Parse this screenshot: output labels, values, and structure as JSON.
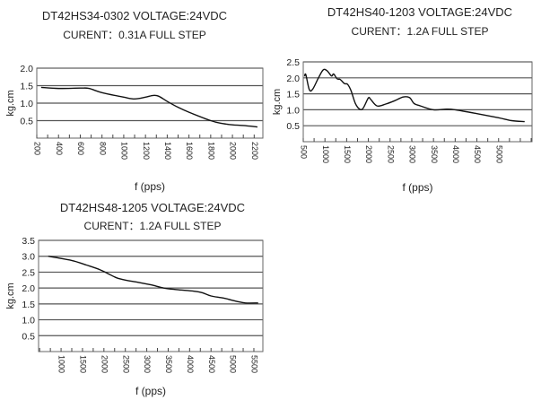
{
  "chart_data": [
    {
      "type": "line",
      "title": "DT42HS34-0302 VOLTAGE:24VDC",
      "subtitle": "CURENT：0.31A  FULL STEP",
      "xlabel": "f (pps)",
      "ylabel": "kg.cm",
      "xlim": [
        200,
        2280
      ],
      "ylim": [
        0,
        2.0
      ],
      "xticks": [
        200,
        400,
        600,
        800,
        1000,
        1200,
        1400,
        1600,
        1800,
        2000,
        2200
      ],
      "xminor": 100,
      "yticks": [
        0.5,
        1.0,
        1.5,
        2.0
      ],
      "ytick_labels": [
        "0.5",
        "1.0",
        "1.5",
        "2.0"
      ],
      "grid": true,
      "x": [
        240,
        400,
        600,
        680,
        800,
        1000,
        1100,
        1200,
        1270,
        1320,
        1400,
        1500,
        1600,
        1800,
        1900,
        2000,
        2100,
        2230
      ],
      "y": [
        1.45,
        1.42,
        1.43,
        1.42,
        1.3,
        1.17,
        1.12,
        1.17,
        1.22,
        1.2,
        1.05,
        0.88,
        0.74,
        0.5,
        0.42,
        0.38,
        0.36,
        0.32
      ]
    },
    {
      "type": "line",
      "title": "DT42HS40-1203 VOLTAGE:24VDC",
      "subtitle": "CURENT：1.2A  FULL STEP",
      "xlabel": "f (pps)",
      "ylabel": "kg.cm",
      "xlim": [
        500,
        5770
      ],
      "ylim": [
        0,
        2.5
      ],
      "xticks": [
        500,
        1000,
        1500,
        2000,
        2500,
        3000,
        3500,
        4000,
        4500,
        5000
      ],
      "xminor": 250,
      "yticks": [
        0.5,
        1.0,
        1.5,
        2.0,
        2.5
      ],
      "ytick_labels": [
        "0.5",
        "1.0",
        "1.5",
        "2.0",
        "2.5"
      ],
      "grid": true,
      "x": [
        530,
        560,
        640,
        720,
        850,
        960,
        1050,
        1150,
        1200,
        1280,
        1350,
        1450,
        1520,
        1600,
        1700,
        1800,
        1880,
        2000,
        2050,
        2200,
        2400,
        2600,
        2800,
        2950,
        3050,
        3200,
        3500,
        3800,
        4000,
        4500,
        5000,
        5300,
        5600
      ],
      "y": [
        2.05,
        2.1,
        1.63,
        1.65,
        2.0,
        2.25,
        2.22,
        2.06,
        2.12,
        1.97,
        1.95,
        1.82,
        1.8,
        1.6,
        1.2,
        1.02,
        1.05,
        1.37,
        1.33,
        1.12,
        1.18,
        1.28,
        1.4,
        1.38,
        1.2,
        1.12,
        1.0,
        1.02,
        1.0,
        0.88,
        0.75,
        0.66,
        0.63
      ]
    },
    {
      "type": "line",
      "title": "DT42HS48-1205 VOLTAGE:24VDC",
      "subtitle": "CURENT：1.2A  FULL STEP",
      "xlabel": "f (pps)",
      "ylabel": "kg.cm",
      "xlim": [
        475,
        5710
      ],
      "ylim": [
        0,
        3.5
      ],
      "xticks": [
        1000,
        1500,
        2000,
        2500,
        3000,
        3500,
        4000,
        4500,
        5000,
        5500
      ],
      "xminor": 250,
      "yticks": [
        0.5,
        1.0,
        1.5,
        2.0,
        2.5,
        3.0,
        3.5
      ],
      "ytick_labels": [
        "0.5",
        "1.0",
        "1.5",
        "2.0",
        "2.5",
        "3.0",
        "3.5"
      ],
      "grid": true,
      "x": [
        700,
        1000,
        1300,
        1600,
        1900,
        2100,
        2300,
        2500,
        2800,
        3100,
        3400,
        3700,
        4100,
        4300,
        4500,
        4800,
        5100,
        5300,
        5600
      ],
      "y": [
        3.0,
        2.93,
        2.85,
        2.72,
        2.58,
        2.45,
        2.32,
        2.25,
        2.18,
        2.1,
        2.0,
        1.95,
        1.9,
        1.85,
        1.75,
        1.68,
        1.58,
        1.53,
        1.53
      ]
    }
  ]
}
